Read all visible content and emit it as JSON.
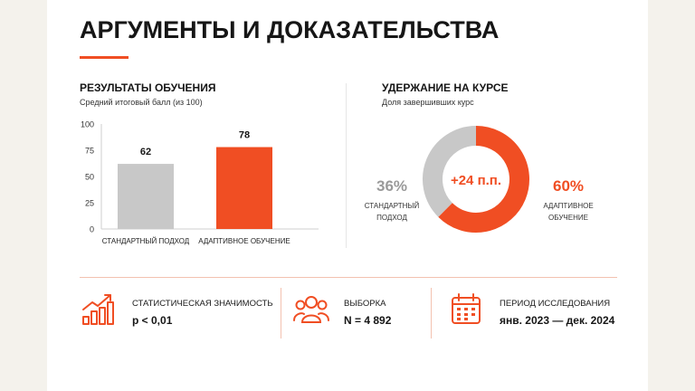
{
  "title": "АРГУМЕНТЫ И ДОКАЗАТЕЛЬСТВА",
  "colors": {
    "accent": "#f04e23",
    "gray": "#c8c8c8",
    "text": "#161616"
  },
  "chart_data": [
    {
      "type": "bar",
      "title": "РЕЗУЛЬТАТЫ ОБУЧЕНИЯ",
      "subtitle": "Средний итоговый балл (из 100)",
      "categories": [
        "СТАНДАРТНЫЙ ПОДХОД",
        "АДАПТИВНОЕ ОБУЧЕНИЕ"
      ],
      "values": [
        62,
        78
      ],
      "value_labels": [
        "62",
        "78"
      ],
      "ylim": [
        0,
        100
      ],
      "yticks": [
        "0",
        "25",
        "50",
        "75",
        "100"
      ],
      "grid": false,
      "colors": [
        "#c8c8c8",
        "#f04e23"
      ]
    },
    {
      "type": "pie",
      "title": "УДЕРЖАНИЕ НА КУРСЕ",
      "subtitle": "Доля завершивших курс",
      "donut": true,
      "center_label": "+24 п.п.",
      "slices": [
        {
          "value": 60,
          "pct": "60%",
          "label_line1": "АДАПТИВНОЕ",
          "label_line2": "ОБУЧЕНИЕ",
          "color": "#f04e23"
        },
        {
          "value": 36,
          "pct": "36%",
          "label_line1": "СТАНДАРТНЫЙ",
          "label_line2": "ПОДХОД",
          "color": "#c8c8c8"
        }
      ]
    }
  ],
  "stats": [
    {
      "icon": "growth-chart-icon",
      "label": "СТАТИСТИЧЕСКАЯ ЗНАЧИМОСТЬ",
      "value": "p < 0,01"
    },
    {
      "icon": "people-icon",
      "label": "ВЫБОРКА",
      "value": "N = 4 892"
    },
    {
      "icon": "calendar-icon",
      "label": "ПЕРИОД ИССЛЕДОВАНИЯ",
      "value": "янв. 2023 — дек. 2024"
    }
  ]
}
